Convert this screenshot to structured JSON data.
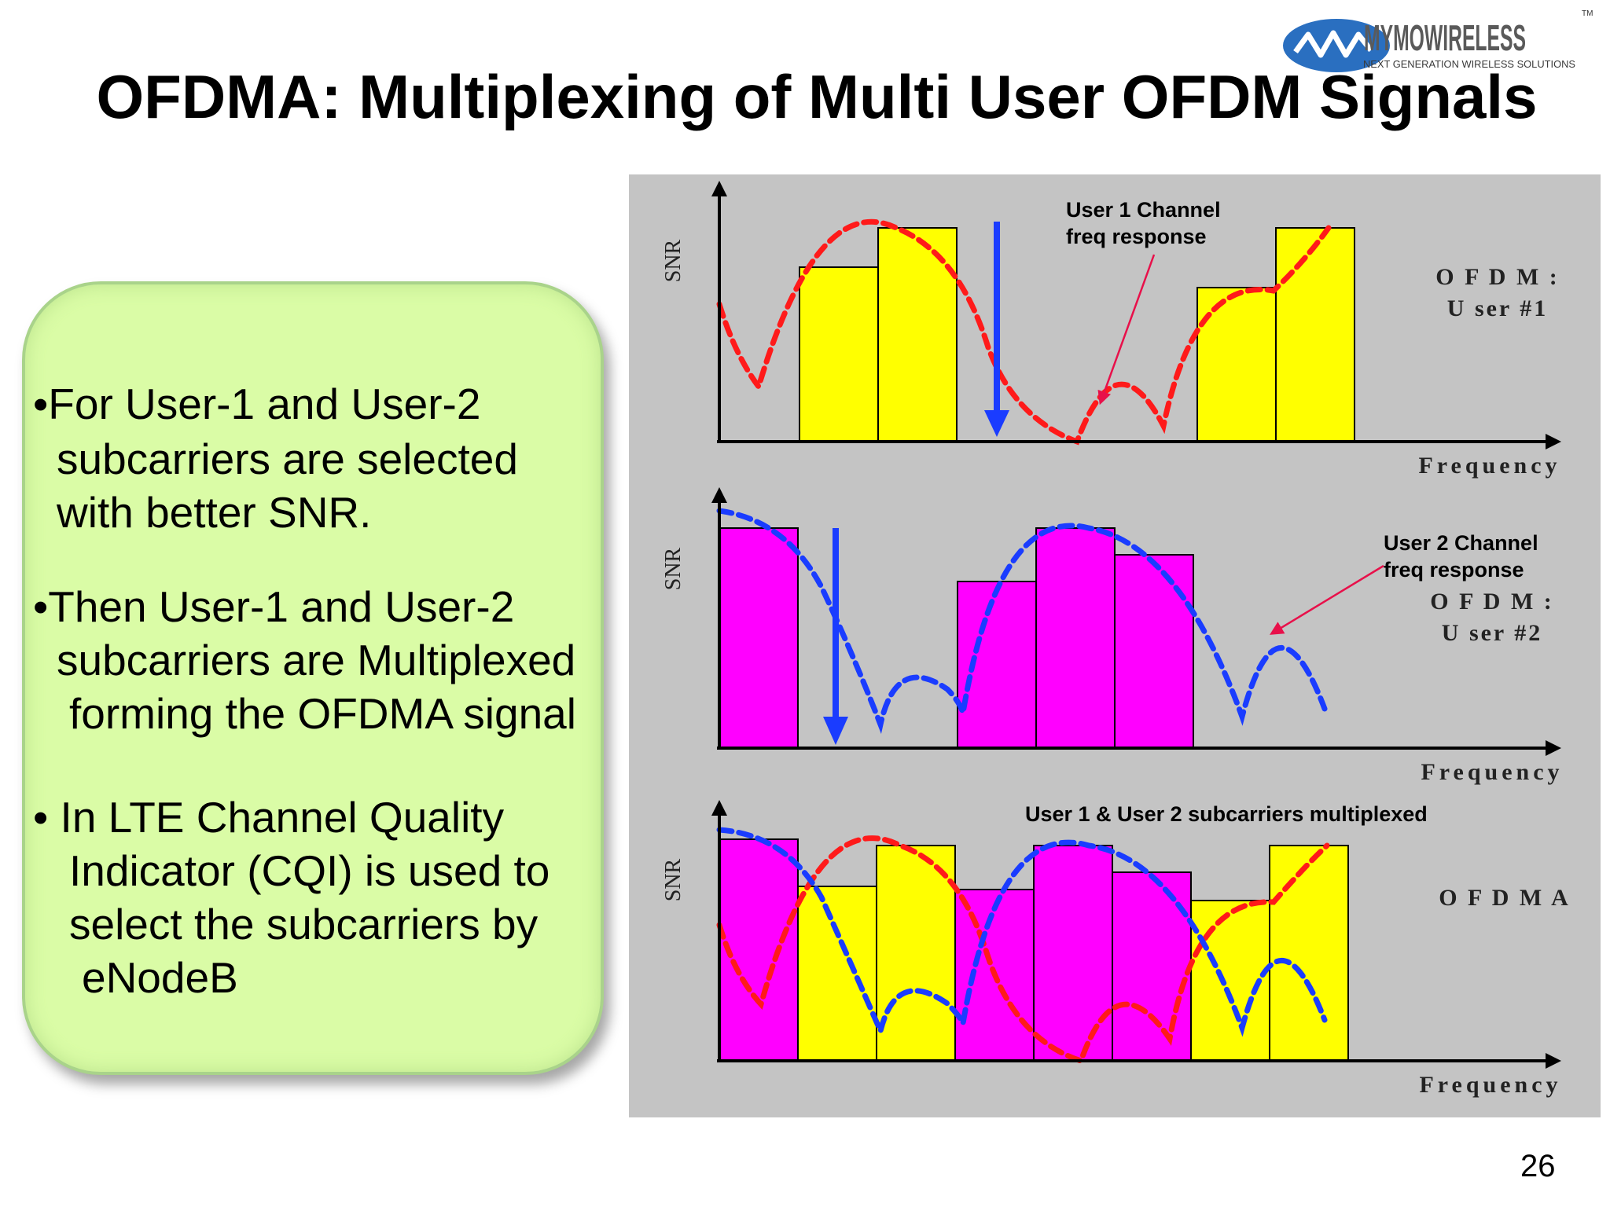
{
  "slide": {
    "title": "OFDMA: Multiplexing of Multi User OFDM Signals",
    "page_number": "26"
  },
  "logo": {
    "brand": "MYMOWIRELESS",
    "tagline": "NEXT GENERATION WIRELESS SOLUTIONS",
    "trademark": "TM"
  },
  "bullets": {
    "b1": [
      "•For User-1 and User-2",
      "subcarriers are selected",
      "with better SNR."
    ],
    "b2": [
      "•Then User-1 and User-2",
      "subcarriers are Multiplexed",
      "forming the OFDMA signal"
    ],
    "b3": [
      "• In LTE Channel Quality",
      "Indicator (CQI) is used to",
      "select the subcarriers by",
      "eNodeB"
    ]
  },
  "diagram": {
    "panel1": {
      "y_axis_label": "SNR",
      "x_axis_label": "Frequency",
      "side_label_line1": "O F D M :",
      "side_label_line2": "U ser #1",
      "annotation_line1": "User 1 Channel",
      "annotation_line2": "freq response"
    },
    "panel2": {
      "y_axis_label": "SNR",
      "x_axis_label": "Frequency",
      "side_label_line1": "O F D M :",
      "side_label_line2": "U ser #2",
      "annotation_line1": "User 2 Channel",
      "annotation_line2": "freq response"
    },
    "panel3": {
      "y_axis_label": "SNR",
      "x_axis_label": "Frequency",
      "side_label_line1": "O F D M A",
      "annotation_line1": "User 1 & User 2  subcarriers multiplexed"
    }
  },
  "colors": {
    "background": "#ffffff",
    "diagram_background": "#c4c4c4",
    "bullet_box_fill": "#dafca6",
    "user1_bars": "#ffff00",
    "user2_bars": "#ff00ff",
    "user1_curve": "#ff1a1a",
    "user2_curve": "#1a3cff",
    "null_arrow": "#1a3cff",
    "annotation_pointer": "#e8104a",
    "logo_blue": "#2a6fc0"
  }
}
